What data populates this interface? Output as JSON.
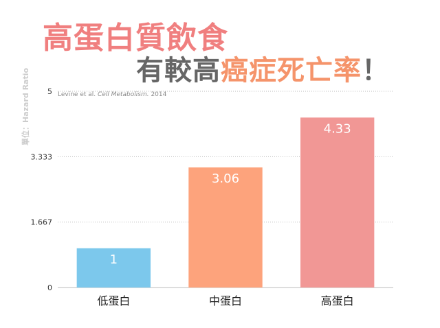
{
  "title": {
    "line1": "高蛋白質飲食",
    "line2_prefix": "有較高",
    "line2_highlight": "癌症死亡率",
    "line2_suffix": "！"
  },
  "colors": {
    "title1": "#f07f7f",
    "title2_prefix": "#666666",
    "title2_highlight": "#f5946b",
    "grid": "#bbbbbb"
  },
  "chart_data": {
    "type": "bar",
    "categories": [
      "低蛋白",
      "中蛋白",
      "高蛋白"
    ],
    "values": [
      1,
      3.06,
      4.33
    ],
    "value_labels": [
      "1",
      "3.06",
      "4.33"
    ],
    "colors": [
      "#7cc8ec",
      "#fda37c",
      "#f19795"
    ],
    "yticks": [
      "0",
      "1.667",
      "3.333",
      "5"
    ],
    "ylim": [
      0,
      5
    ],
    "ylabel": "單位：Hazard Ratio",
    "annotation": {
      "text": "Levine et al. ",
      "italic": "Cell Metabolism.",
      "suffix": " 2014"
    },
    "grid": true
  }
}
